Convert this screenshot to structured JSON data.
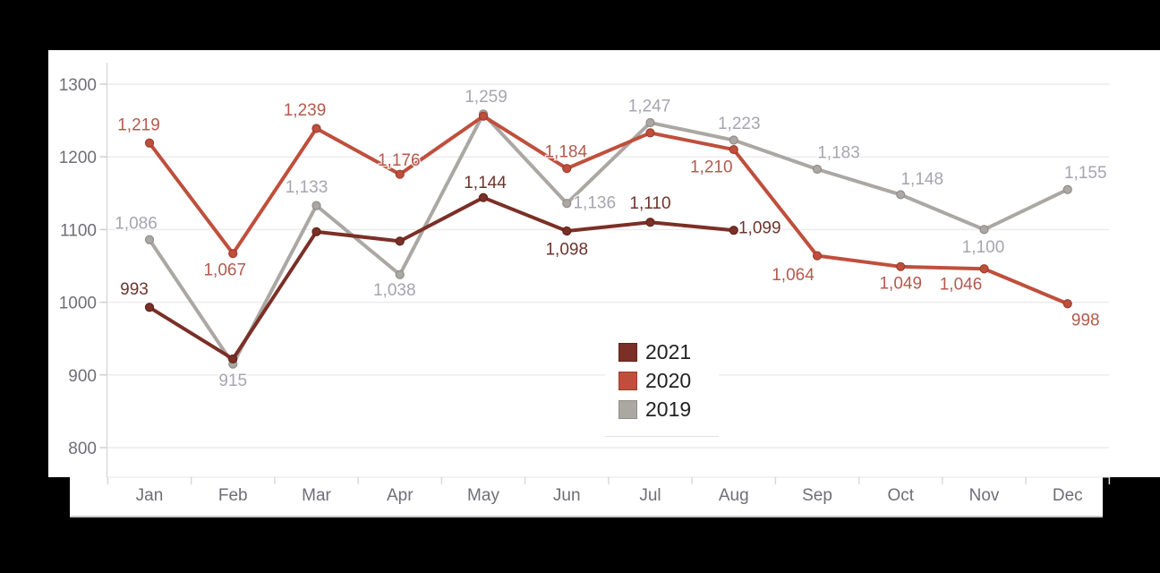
{
  "canvas": {
    "background_color": "#000000",
    "card_color": "#ffffff"
  },
  "chart_data": {
    "type": "line",
    "title": "",
    "xlabel": "",
    "ylabel": "",
    "x": [
      "Jan",
      "Feb",
      "Mar",
      "Apr",
      "May",
      "Jun",
      "Jul",
      "Aug",
      "Sep",
      "Oct",
      "Nov",
      "Dec"
    ],
    "ylim": [
      800,
      1300
    ],
    "yticks": [
      "1300",
      "1200",
      "1100",
      "1000",
      "900",
      "800"
    ],
    "grid": true,
    "legend_position": "center",
    "axis_text_color": "#6e6e78",
    "grid_color": "#ececec",
    "axis_line_color": "#d9d9d9",
    "series": [
      {
        "name": "2021",
        "color": "#7b2f26",
        "marker_edge": "#5e241b",
        "label_color": "#6d342b",
        "values": [
          993,
          922,
          1097,
          1084,
          1144,
          1098,
          1110,
          1099,
          null,
          null,
          null,
          null
        ],
        "labels": [
          "993",
          null,
          null,
          null,
          "1,144",
          "1,098",
          "1,110",
          "1,099",
          null,
          null,
          null,
          null
        ],
        "label_offsets": [
          [
            -17,
            -21
          ],
          null,
          null,
          null,
          [
            2,
            -17
          ],
          [
            0,
            20
          ],
          [
            0,
            -22
          ],
          [
            29,
            -3
          ],
          null,
          null,
          null,
          null
        ]
      },
      {
        "name": "2020",
        "color": "#bf4f3c",
        "marker_edge": "#9e3d2d",
        "label_color": "#b45a4d",
        "values": [
          1219,
          1067,
          1239,
          1176,
          1256,
          1184,
          1233,
          1210,
          1064,
          1049,
          1046,
          998
        ],
        "labels": [
          "1,219",
          "1,067",
          "1,239",
          "1,176",
          null,
          "1,184",
          null,
          "1,210",
          "1,064",
          "1,049",
          "1,046",
          "998"
        ],
        "label_offsets": [
          [
            -12,
            -21
          ],
          [
            -9,
            18
          ],
          [
            -13,
            -21
          ],
          [
            -1,
            -16
          ],
          null,
          [
            -1,
            -19
          ],
          null,
          [
            -25,
            19
          ],
          [
            -27,
            21
          ],
          [
            0,
            18
          ],
          [
            -26,
            17
          ],
          [
            20,
            18
          ]
        ]
      },
      {
        "name": "2019",
        "color": "#aba7a3",
        "marker_edge": "#918d89",
        "label_color": "#a7a4b0",
        "values": [
          1086,
          915,
          1133,
          1038,
          1259,
          1136,
          1247,
          1223,
          1183,
          1148,
          1100,
          1155
        ],
        "labels": [
          "1,086",
          "915",
          "1,133",
          "1,038",
          "1,259",
          "1,136",
          "1,247",
          "1,223",
          "1,183",
          "1,148",
          "1,100",
          "1,155"
        ],
        "label_offsets": [
          [
            -15,
            -19
          ],
          [
            0,
            18
          ],
          [
            -11,
            -21
          ],
          [
            -6,
            17
          ],
          [
            3,
            -20
          ],
          [
            31,
            -1
          ],
          [
            -1,
            -19
          ],
          [
            6,
            -19
          ],
          [
            24,
            -19
          ],
          [
            24,
            -18
          ],
          [
            -1,
            19
          ],
          [
            20,
            -19
          ]
        ]
      }
    ]
  },
  "legend": {
    "items": [
      {
        "label": "2021",
        "color": "#7b2f26",
        "border": "#5e241b"
      },
      {
        "label": "2020",
        "color": "#bf4f3c",
        "border": "#9e3d2d"
      },
      {
        "label": "2019",
        "color": "#aba7a3",
        "border": "#918d89"
      }
    ]
  }
}
